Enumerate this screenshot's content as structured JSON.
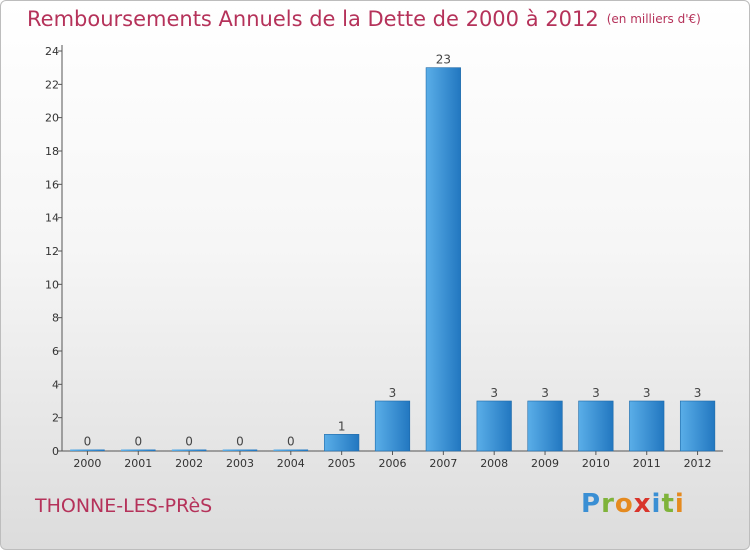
{
  "page": {
    "title": "Remboursements Annuels de la Dette de 2000 à 2012",
    "unit": "(en milliers d'€)",
    "commune": "THONNE-LES-PRèS",
    "logo_letters": [
      "P",
      "r",
      "o",
      "x",
      "i",
      "t",
      "i"
    ]
  },
  "colors": {
    "title": "#b5325a",
    "bar_light": "#5aaee8",
    "bar_dark": "#2277c0",
    "logo": [
      "#3a8fd4",
      "#7fb33a",
      "#e58a1f",
      "#d9342b",
      "#3a8fd4",
      "#7fb33a",
      "#e58a1f"
    ]
  },
  "chart_data": {
    "type": "bar",
    "title": "Remboursements Annuels de la Dette de 2000 à 2012",
    "xlabel": "",
    "ylabel": "",
    "ylim": [
      0,
      24
    ],
    "yticks": [
      0,
      2,
      4,
      6,
      8,
      10,
      12,
      14,
      16,
      18,
      20,
      22,
      24
    ],
    "grid": false,
    "categories": [
      "2000",
      "2001",
      "2002",
      "2003",
      "2004",
      "2005",
      "2006",
      "2007",
      "2008",
      "2009",
      "2010",
      "2011",
      "2012"
    ],
    "values": [
      0,
      0,
      0,
      0,
      0,
      1,
      3,
      23,
      3,
      3,
      3,
      3,
      3
    ]
  }
}
